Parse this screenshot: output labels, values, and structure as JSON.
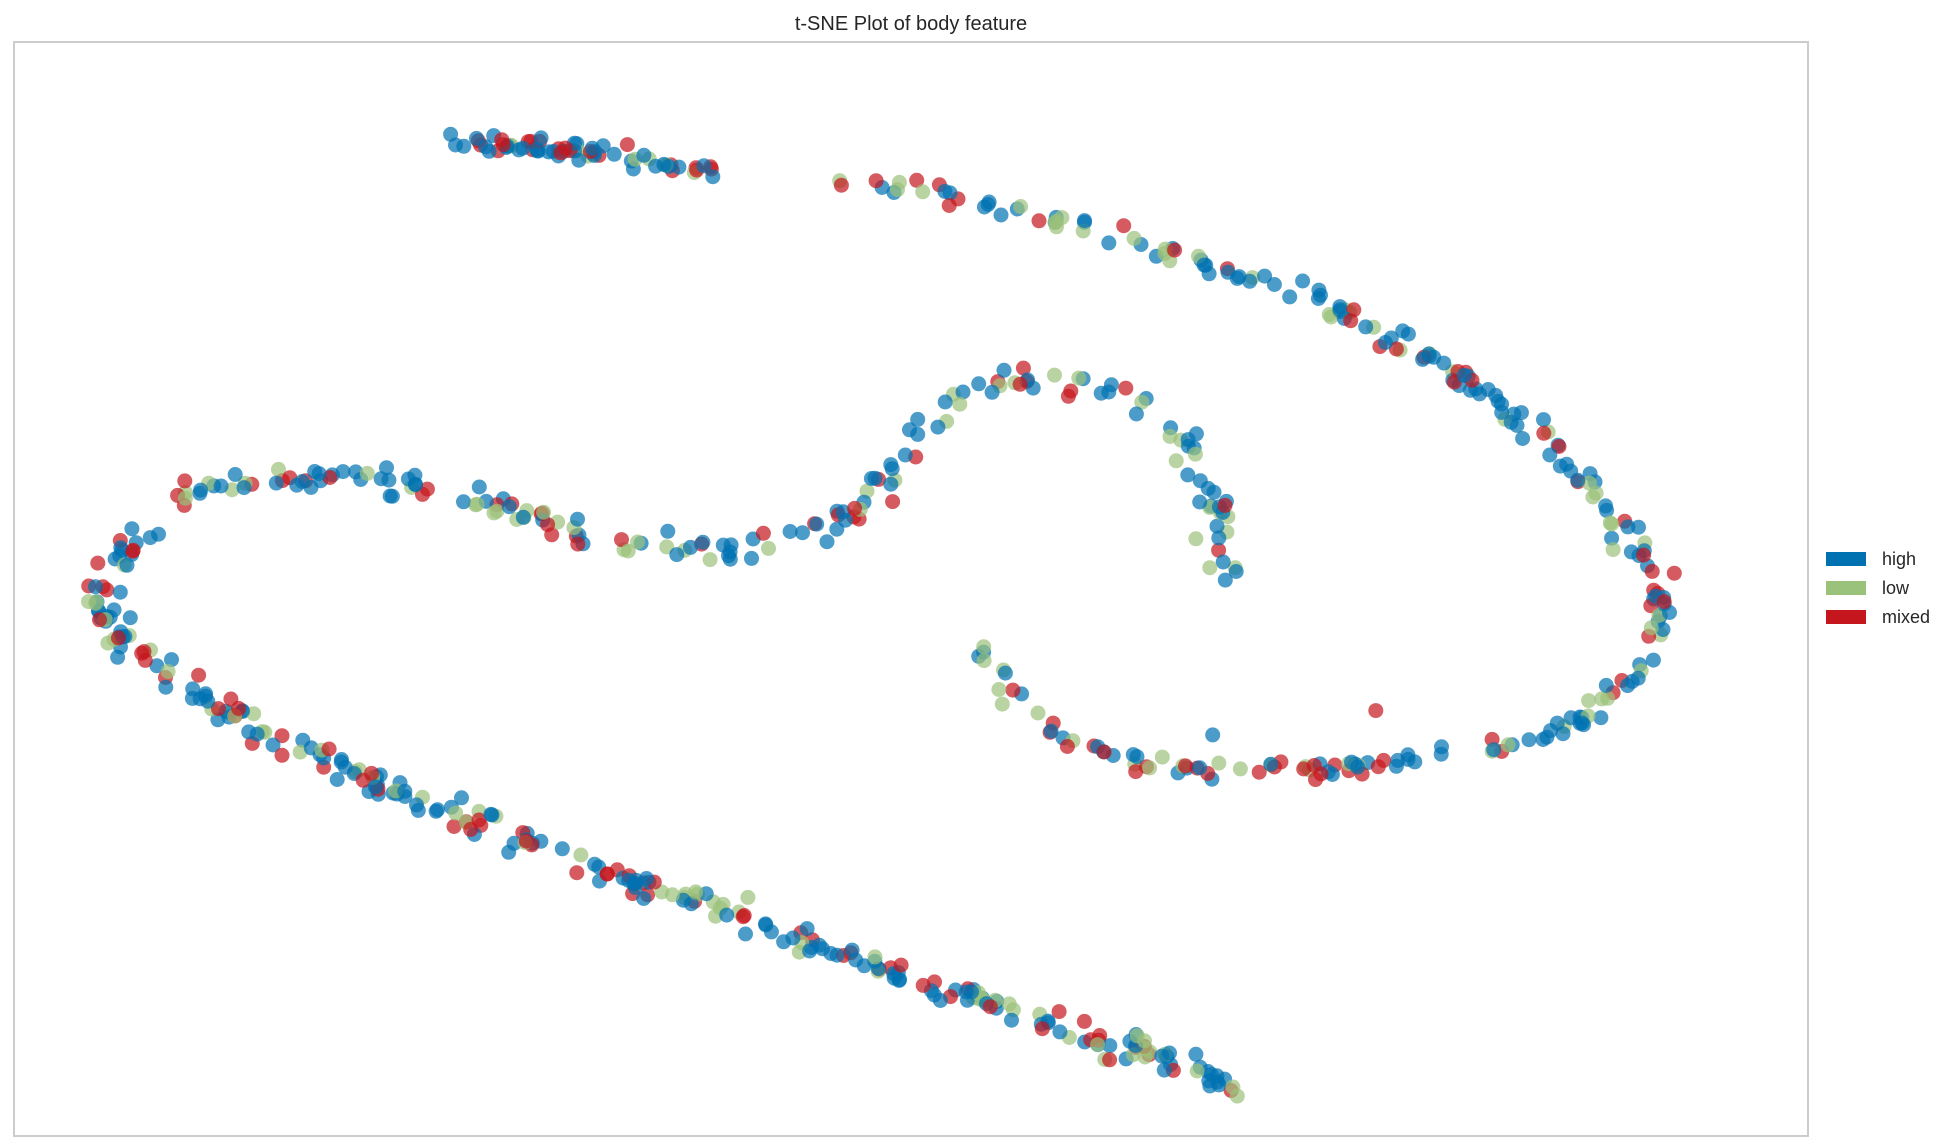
{
  "chart_data": {
    "type": "scatter",
    "title": "t-SNE Plot of body feature",
    "xlabel": "",
    "ylabel": "",
    "grid": false,
    "ticks": false,
    "legend_position": "right-center",
    "xlim": [
      -55,
      55
    ],
    "ylim": [
      -45,
      45
    ],
    "point_alpha": 0.7,
    "series": [
      {
        "name": "high",
        "color": "#0072b2",
        "points": []
      },
      {
        "name": "low",
        "color": "#9bc27a",
        "points": []
      },
      {
        "name": "mixed",
        "color": "#c4161c",
        "points": []
      }
    ],
    "outliers": [
      {
        "series": "high",
        "x": 18.5,
        "y": -12.0
      },
      {
        "series": "mixed",
        "x": 28.5,
        "y": -10.0
      }
    ],
    "curve_paths": [
      {
        "label": "top-arc-1",
        "samples": 70,
        "jitter": 0.35,
        "pts": [
          [
            -28,
            36.8
          ],
          [
            -22,
            36.2
          ],
          [
            -16,
            35.2
          ],
          [
            -12,
            34.5
          ]
        ]
      },
      {
        "label": "top-arc-2",
        "samples": 260,
        "jitter": 0.45,
        "pts": [
          [
            -5,
            33.8
          ],
          [
            5,
            31.5
          ],
          [
            15,
            28.0
          ],
          [
            25,
            23.5
          ],
          [
            33,
            18.0
          ],
          [
            39,
            12.0
          ],
          [
            43,
            6.0
          ],
          [
            45.5,
            0.5
          ],
          [
            45.5,
            -4.0
          ],
          [
            43.5,
            -8.0
          ],
          [
            40,
            -11.5
          ],
          [
            34,
            -13.5
          ],
          [
            26,
            -14.8
          ],
          [
            18,
            -14.6
          ],
          [
            12,
            -13.5
          ],
          [
            8,
            -11.0
          ],
          [
            5.8,
            -8.0
          ],
          [
            4.5,
            -5.0
          ]
        ]
      },
      {
        "label": "middle-hook",
        "samples": 200,
        "jitter": 0.6,
        "pts": [
          [
            -50,
            0.5
          ],
          [
            -48,
            3.5
          ],
          [
            -45,
            7.0
          ],
          [
            -40,
            9.0
          ],
          [
            -35,
            9.3
          ],
          [
            -30,
            8.5
          ],
          [
            -25,
            6.5
          ],
          [
            -20,
            4.3
          ],
          [
            -15,
            3.3
          ],
          [
            -10,
            3.5
          ],
          [
            -5,
            5.2
          ],
          [
            -1.5,
            9.0
          ],
          [
            1,
            13.5
          ],
          [
            4,
            16.5
          ],
          [
            8,
            17.2
          ],
          [
            12,
            16.3
          ],
          [
            15.5,
            13.5
          ],
          [
            17.5,
            10.0
          ],
          [
            18.5,
            6.5
          ],
          [
            18.8,
            3.5
          ],
          [
            18.5,
            0.5
          ]
        ]
      },
      {
        "label": "lower-branch",
        "samples": 280,
        "jitter": 0.55,
        "pts": [
          [
            -50,
            0.5
          ],
          [
            -49.5,
            -2.0
          ],
          [
            -48.0,
            -4.5
          ],
          [
            -45,
            -7.5
          ],
          [
            -40,
            -11.5
          ],
          [
            -35,
            -14.5
          ],
          [
            -30,
            -17.5
          ],
          [
            -25,
            -20.0
          ],
          [
            -20,
            -22.5
          ],
          [
            -15,
            -25.0
          ],
          [
            -10,
            -27.2
          ],
          [
            -5,
            -29.5
          ],
          [
            0,
            -32.0
          ],
          [
            5,
            -34.0
          ],
          [
            10,
            -36.3
          ],
          [
            14,
            -38.0
          ],
          [
            17,
            -39.5
          ],
          [
            19.8,
            -41.0
          ]
        ]
      }
    ]
  },
  "legend": {
    "items": [
      {
        "label": "high",
        "color": "#0072b2"
      },
      {
        "label": "low",
        "color": "#9bc27a"
      },
      {
        "label": "mixed",
        "color": "#c4161c"
      }
    ]
  }
}
